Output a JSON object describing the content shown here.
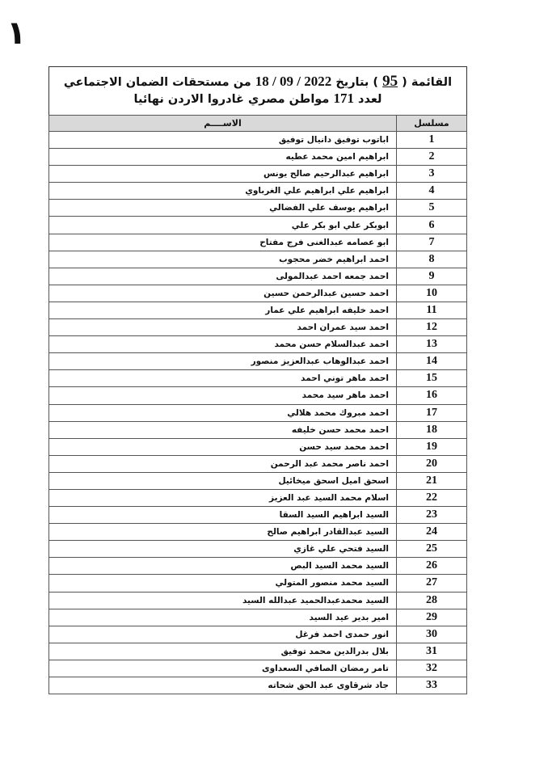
{
  "page_number": "١",
  "title": {
    "line1_prefix": "القائمة (",
    "list_number": "95",
    "line1_mid": ") بتاريخ",
    "date": "18 / 09 / 2022",
    "line1_suffix": "من مستحقات الضمان الاجتماعي",
    "line2_prefix": "لعدد",
    "count": "171",
    "line2_suffix": "مواطن مصري غادروا الاردن نهائيا"
  },
  "table": {
    "headers": {
      "serial": "مسلسل",
      "name": "الاســــم"
    },
    "rows": [
      {
        "serial": "1",
        "name": "اباتوب توفيق دانيال توفيق"
      },
      {
        "serial": "2",
        "name": "ابراهيم امين محمد عطيه"
      },
      {
        "serial": "3",
        "name": "ابراهيم عبدالرحيم صالح يونس"
      },
      {
        "serial": "4",
        "name": "ابراهيم علي ابراهيم علي الغرباوي"
      },
      {
        "serial": "5",
        "name": "ابراهيم يوسف علي الفضالي"
      },
      {
        "serial": "6",
        "name": "ابوبكر علي ابو بكر علي"
      },
      {
        "serial": "7",
        "name": "ابو عصامه عبدالغنى فرج مفتاح"
      },
      {
        "serial": "8",
        "name": "احمد ابراهيم خضر محجوب"
      },
      {
        "serial": "9",
        "name": "احمد جمعه احمد عبدالمولى"
      },
      {
        "serial": "10",
        "name": "احمد حسين عبدالرحمن حسين"
      },
      {
        "serial": "11",
        "name": "احمد خليفه ابراهيم علي عمار"
      },
      {
        "serial": "12",
        "name": "احمد سيد عمران احمد"
      },
      {
        "serial": "13",
        "name": "احمد عبدالسلام حسن محمد"
      },
      {
        "serial": "14",
        "name": "احمد عبدالوهاب عبدالعزيز منصور"
      },
      {
        "serial": "15",
        "name": "احمد ماهر توني احمد"
      },
      {
        "serial": "16",
        "name": "احمد ماهر سيد محمد"
      },
      {
        "serial": "17",
        "name": "احمد مبروك محمد هلالي"
      },
      {
        "serial": "18",
        "name": "احمد محمد حسن خليفه"
      },
      {
        "serial": "19",
        "name": "احمد محمد سيد حسن"
      },
      {
        "serial": "20",
        "name": "احمد ناصر محمد عبد الرحمن"
      },
      {
        "serial": "21",
        "name": "اسحق اميل اسحق ميخائيل"
      },
      {
        "serial": "22",
        "name": "اسلام محمد السيد عبد العزيز"
      },
      {
        "serial": "23",
        "name": "السيد ابراهيم السيد السقا"
      },
      {
        "serial": "24",
        "name": "السيد عبدالقادر ابراهيم صالح"
      },
      {
        "serial": "25",
        "name": "السيد فتحي علي غازي"
      },
      {
        "serial": "26",
        "name": "السيد محمد السيد البص"
      },
      {
        "serial": "27",
        "name": "السيد محمد منصور المتولي"
      },
      {
        "serial": "28",
        "name": "السيد محمدعبدالحميد عبدالله السيد"
      },
      {
        "serial": "29",
        "name": "امير بدير عيد السيد"
      },
      {
        "serial": "30",
        "name": "انور حمدى احمد فرغل"
      },
      {
        "serial": "31",
        "name": "بلال بدرالدين محمد توفيق"
      },
      {
        "serial": "32",
        "name": "تامر رمضان الصافي السعداوى"
      },
      {
        "serial": "33",
        "name": "جاد شرقاوى عبد الحق شحاته"
      }
    ]
  }
}
